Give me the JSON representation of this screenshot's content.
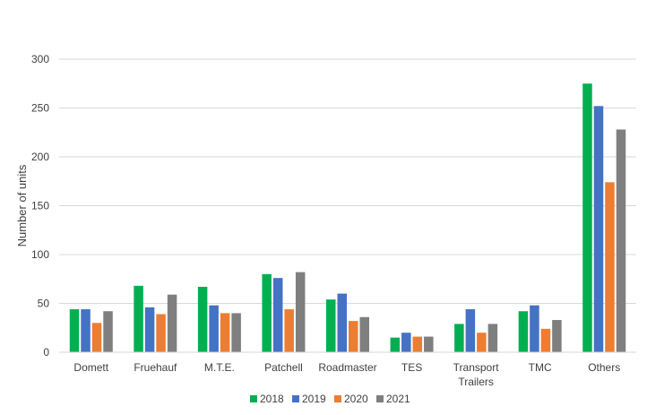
{
  "chart_data": {
    "type": "bar",
    "categories": [
      "Domett",
      "Fruehauf",
      "M.T.E.",
      "Patchell",
      "Roadmaster",
      "TES",
      "Transport Trailers",
      "TMC",
      "Others"
    ],
    "series": [
      {
        "name": "2018",
        "color": "#00b050",
        "values": [
          44,
          68,
          67,
          80,
          54,
          15,
          29,
          42,
          275
        ]
      },
      {
        "name": "2019",
        "color": "#4472c4",
        "values": [
          44,
          46,
          48,
          76,
          60,
          20,
          44,
          48,
          252
        ]
      },
      {
        "name": "2020",
        "color": "#ed7d31",
        "values": [
          30,
          39,
          40,
          44,
          32,
          16,
          20,
          24,
          174
        ]
      },
      {
        "name": "2021",
        "color": "#7f7f7f",
        "values": [
          42,
          59,
          40,
          82,
          36,
          16,
          29,
          33,
          228
        ]
      }
    ],
    "ylabel": "Number of units",
    "ylim": [
      0,
      300
    ],
    "yticks": [
      0,
      50,
      100,
      150,
      200,
      250,
      300
    ],
    "grid": true,
    "legend_position": "bottom"
  }
}
